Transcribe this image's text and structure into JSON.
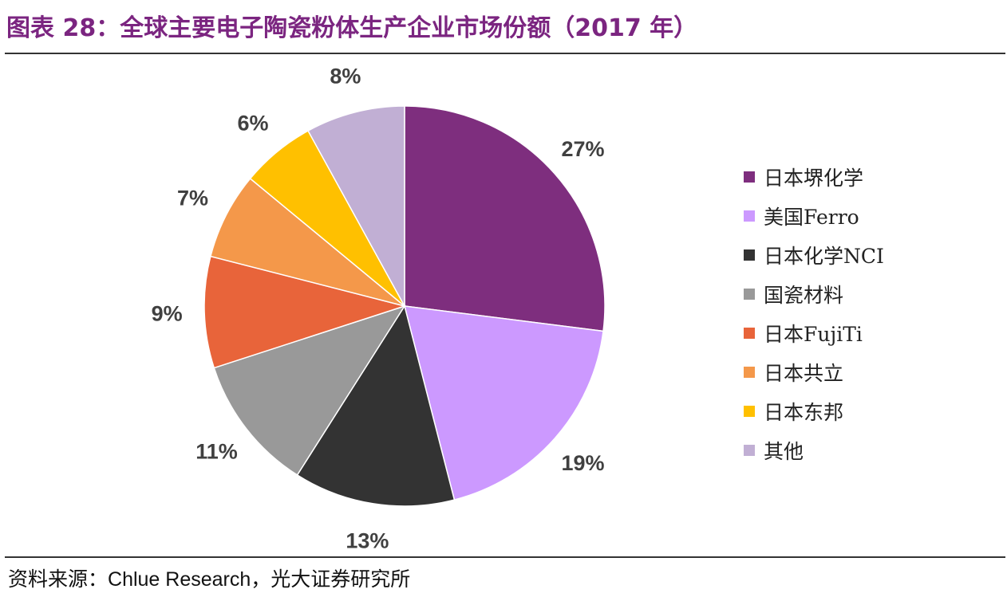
{
  "header": {
    "title": "图表 28：全球主要电子陶瓷粉体生产企业市场份额（2017 年）"
  },
  "chart_data": {
    "type": "pie",
    "title": "全球主要电子陶瓷粉体生产企业市场份额（2017 年）",
    "labels": [
      "日本堺化学",
      "美国Ferro",
      "日本化学NCI",
      "国瓷材料",
      "日本FujiTi",
      "日本共立",
      "日本东邦",
      "其他"
    ],
    "values": [
      27,
      19,
      13,
      11,
      9,
      7,
      6,
      8
    ],
    "data_labels": [
      "27%",
      "19%",
      "13%",
      "11%",
      "9%",
      "7%",
      "6%",
      "8%"
    ],
    "colors": [
      "#7E2E7E",
      "#CC99FF",
      "#333333",
      "#999999",
      "#E8643A",
      "#F4984A",
      "#FFC000",
      "#C1AFD4"
    ],
    "start": "12 o'clock",
    "direction": "clockwise",
    "legend_position": "right"
  },
  "footer": {
    "source_label": "资料来源：",
    "source_en": "Chlue Research",
    "source_rest": "，光大证券研究所"
  }
}
